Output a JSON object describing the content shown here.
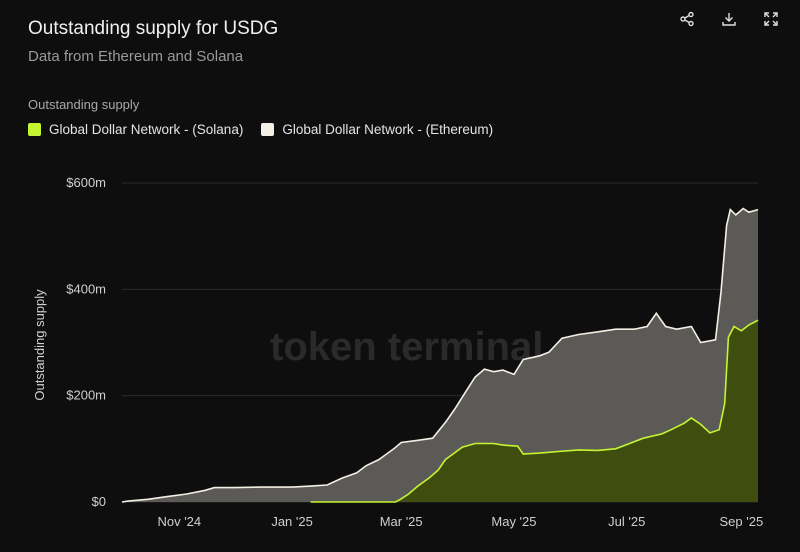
{
  "header": {
    "title": "Outstanding supply for USDG",
    "subtitle": "Data from Ethereum and Solana"
  },
  "toolbar": {
    "icons": [
      "share-icon",
      "download-icon",
      "expand-icon"
    ]
  },
  "legend": {
    "title": "Outstanding supply",
    "items": [
      {
        "label": "Global Dollar Network - (Solana)",
        "color": "#c5f530"
      },
      {
        "label": "Global Dollar Network - (Ethereum)",
        "color": "#f4efe4"
      }
    ]
  },
  "watermark": "token terminal_",
  "chart_data": {
    "type": "area",
    "stacked": true,
    "ylabel": "Outstanding supply",
    "ylim": [
      0,
      600
    ],
    "y_ticks": [
      {
        "value": 0,
        "label": "$0"
      },
      {
        "value": 200,
        "label": "$200m"
      },
      {
        "value": 400,
        "label": "$400m"
      },
      {
        "value": 600,
        "label": "$600m"
      }
    ],
    "x_ticks": [
      {
        "date": "2024-11-01",
        "label": "Nov '24"
      },
      {
        "date": "2025-01-01",
        "label": "Jan '25"
      },
      {
        "date": "2025-03-01",
        "label": "Mar '25"
      },
      {
        "date": "2025-05-01",
        "label": "May '25"
      },
      {
        "date": "2025-07-01",
        "label": "Jul '25"
      },
      {
        "date": "2025-09-01",
        "label": "Sep '25"
      }
    ],
    "xlim": [
      "2024-10-01",
      "2025-09-10"
    ],
    "grid": true,
    "series": [
      {
        "name": "Global Dollar Network - (Solana)",
        "color": "#c5f530",
        "points": [
          [
            "2025-01-11",
            0
          ],
          [
            "2025-02-26",
            0
          ],
          [
            "2025-03-01",
            6
          ],
          [
            "2025-03-05",
            15
          ],
          [
            "2025-03-10",
            30
          ],
          [
            "2025-03-16",
            45
          ],
          [
            "2025-03-21",
            60
          ],
          [
            "2025-03-25",
            80
          ],
          [
            "2025-03-29",
            90
          ],
          [
            "2025-04-03",
            103
          ],
          [
            "2025-04-10",
            110
          ],
          [
            "2025-04-20",
            110
          ],
          [
            "2025-04-25",
            107
          ],
          [
            "2025-05-03",
            105
          ],
          [
            "2025-05-06",
            90
          ],
          [
            "2025-05-15",
            92
          ],
          [
            "2025-05-25",
            95
          ],
          [
            "2025-06-05",
            98
          ],
          [
            "2025-06-15",
            97
          ],
          [
            "2025-06-25",
            100
          ],
          [
            "2025-07-01",
            108
          ],
          [
            "2025-07-10",
            120
          ],
          [
            "2025-07-20",
            128
          ],
          [
            "2025-07-25",
            136
          ],
          [
            "2025-08-01",
            148
          ],
          [
            "2025-08-05",
            158
          ],
          [
            "2025-08-10",
            146
          ],
          [
            "2025-08-15",
            130
          ],
          [
            "2025-08-20",
            136
          ],
          [
            "2025-08-23",
            185
          ],
          [
            "2025-08-25",
            310
          ],
          [
            "2025-08-28",
            330
          ],
          [
            "2025-09-01",
            322
          ],
          [
            "2025-09-05",
            333
          ],
          [
            "2025-09-10",
            342
          ]
        ]
      },
      {
        "name": "Global Dollar Network - (Ethereum)",
        "color": "#f4efe4",
        "total_points": [
          [
            "2024-10-01",
            0
          ],
          [
            "2024-10-05",
            2
          ],
          [
            "2024-10-15",
            5
          ],
          [
            "2024-10-25",
            10
          ],
          [
            "2024-11-05",
            15
          ],
          [
            "2024-11-15",
            22
          ],
          [
            "2024-11-20",
            27
          ],
          [
            "2024-12-01",
            27
          ],
          [
            "2024-12-15",
            28
          ],
          [
            "2025-01-01",
            28
          ],
          [
            "2025-01-11",
            30
          ],
          [
            "2025-01-20",
            32
          ],
          [
            "2025-01-28",
            45
          ],
          [
            "2025-02-05",
            55
          ],
          [
            "2025-02-10",
            68
          ],
          [
            "2025-02-17",
            80
          ],
          [
            "2025-02-25",
            100
          ],
          [
            "2025-03-01",
            112
          ],
          [
            "2025-03-10",
            116
          ],
          [
            "2025-03-18",
            120
          ],
          [
            "2025-03-25",
            150
          ],
          [
            "2025-03-30",
            175
          ],
          [
            "2025-04-05",
            208
          ],
          [
            "2025-04-10",
            235
          ],
          [
            "2025-04-15",
            250
          ],
          [
            "2025-04-20",
            245
          ],
          [
            "2025-04-25",
            248
          ],
          [
            "2025-05-01",
            240
          ],
          [
            "2025-05-06",
            268
          ],
          [
            "2025-05-15",
            275
          ],
          [
            "2025-05-20",
            282
          ],
          [
            "2025-05-27",
            308
          ],
          [
            "2025-06-05",
            315
          ],
          [
            "2025-06-15",
            320
          ],
          [
            "2025-06-25",
            325
          ],
          [
            "2025-07-05",
            325
          ],
          [
            "2025-07-12",
            330
          ],
          [
            "2025-07-17",
            355
          ],
          [
            "2025-07-22",
            330
          ],
          [
            "2025-07-28",
            325
          ],
          [
            "2025-08-05",
            330
          ],
          [
            "2025-08-10",
            300
          ],
          [
            "2025-08-18",
            305
          ],
          [
            "2025-08-21",
            395
          ],
          [
            "2025-08-24",
            520
          ],
          [
            "2025-08-26",
            550
          ],
          [
            "2025-08-29",
            540
          ],
          [
            "2025-09-02",
            552
          ],
          [
            "2025-09-05",
            545
          ],
          [
            "2025-09-10",
            550
          ]
        ]
      }
    ]
  }
}
